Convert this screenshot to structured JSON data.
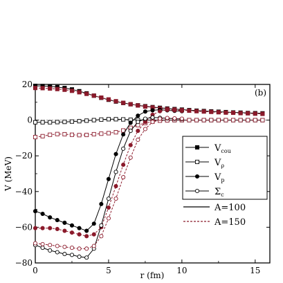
{
  "chart_data": {
    "type": "line",
    "title": "",
    "panel_label": "(b)",
    "xlabel": "r (fm)",
    "ylabel": "V (MeV)",
    "xlim": [
      0,
      16
    ],
    "ylim": [
      -80,
      20
    ],
    "xticks": [
      0,
      5,
      10,
      15
    ],
    "yticks": [
      20,
      0,
      -20,
      -40,
      -60,
      -80
    ],
    "xtick_labels": [
      "0",
      "5",
      "10",
      "15"
    ],
    "ytick_labels": [
      "20",
      "0",
      "−20",
      "−40",
      "−60",
      "−80"
    ],
    "grid": false,
    "legend_position": "right",
    "legend": {
      "markers": [
        {
          "key": "V_cou",
          "base": "V",
          "sub": "cou",
          "marker": "filled-square"
        },
        {
          "key": "V_rho",
          "base": "V",
          "sub": "ρ",
          "marker": "open-square"
        },
        {
          "key": "V_p",
          "base": "V",
          "sub": "p",
          "marker": "filled-circle"
        },
        {
          "key": "Sigma_c",
          "base": "Σ",
          "sub": "c",
          "marker": "open-circle"
        }
      ],
      "lines": [
        {
          "key": "A100",
          "label": "A=100",
          "style": "solid"
        },
        {
          "key": "A150",
          "label": "A=150",
          "style": "dashed"
        }
      ]
    },
    "colors": {
      "A100": "#000000",
      "A150": "#8b1a2b"
    },
    "series": [
      {
        "component": "V_cou",
        "nucleus": "A=100",
        "marker": "filled-square",
        "style": "solid",
        "x": [
          0,
          0.5,
          1,
          1.5,
          2,
          2.5,
          3,
          3.5,
          4,
          4.5,
          5,
          5.5,
          6,
          6.5,
          7,
          7.5,
          8,
          8.5,
          9,
          9.5,
          10,
          10.5,
          11,
          11.5,
          12,
          12.5,
          13,
          13.5,
          14,
          14.5,
          15,
          15.5
        ],
        "y": [
          19.2,
          19.1,
          18.9,
          18.5,
          18,
          17.2,
          16.2,
          15,
          13.7,
          12.5,
          11.4,
          10.4,
          9.6,
          8.9,
          8.3,
          7.8,
          7.3,
          6.9,
          6.5,
          6.2,
          5.9,
          5.6,
          5.3,
          5.1,
          4.9,
          4.7,
          4.5,
          4.3,
          4.2,
          4.0,
          3.9,
          3.8
        ]
      },
      {
        "component": "V_cou",
        "nucleus": "A=150",
        "marker": "filled-square",
        "style": "dashed",
        "x": [
          0,
          0.5,
          1,
          1.5,
          2,
          2.5,
          3,
          3.5,
          4,
          4.5,
          5,
          5.5,
          6,
          6.5,
          7,
          7.5,
          8,
          8.5,
          9,
          9.5,
          10,
          10.5,
          11,
          11.5,
          12,
          12.5,
          13,
          13.5,
          14,
          14.5,
          15,
          15.5
        ],
        "y": [
          18.0,
          17.9,
          17.7,
          17.4,
          17,
          16.4,
          15.6,
          14.7,
          13.7,
          12.6,
          11.6,
          10.6,
          9.7,
          8.9,
          8.2,
          7.6,
          7.1,
          6.6,
          6.2,
          5.9,
          5.6,
          5.3,
          5.0,
          4.8,
          4.6,
          4.4,
          4.2,
          4.1,
          3.9,
          3.8,
          3.6,
          3.5
        ]
      },
      {
        "component": "V_rho",
        "nucleus": "A=100",
        "marker": "open-square",
        "style": "solid",
        "x": [
          0,
          0.5,
          1,
          1.5,
          2,
          2.5,
          3,
          3.5,
          4,
          4.5,
          5,
          5.5,
          6,
          6.5,
          7,
          7.5,
          8,
          8.5,
          9,
          9.5,
          10,
          10.5,
          11,
          11.5,
          12,
          12.5,
          13,
          13.5,
          14,
          14.5,
          15,
          15.5
        ],
        "y": [
          -1.2,
          -1.2,
          -1.2,
          -1.1,
          -1.0,
          -0.8,
          -0.6,
          -0.3,
          0.0,
          0.3,
          0.5,
          0.5,
          0.4,
          0.2,
          0.1,
          0,
          0,
          0,
          0,
          0,
          0,
          0,
          0,
          0,
          0,
          0,
          0,
          0,
          0,
          0,
          0,
          0
        ]
      },
      {
        "component": "V_rho",
        "nucleus": "A=150",
        "marker": "open-square",
        "style": "dashed",
        "x": [
          0,
          0.5,
          1,
          1.5,
          2,
          2.5,
          3,
          3.5,
          4,
          4.5,
          5,
          5.5,
          6,
          6.5,
          7,
          7.5,
          8,
          8.5,
          9,
          9.5,
          10,
          10.5,
          11,
          11.5,
          12,
          12.5,
          13,
          13.5,
          14,
          14.5,
          15,
          15.5
        ],
        "y": [
          -9.5,
          -9.0,
          -8.2,
          -7.8,
          -7.9,
          -8.2,
          -8.4,
          -8.3,
          -7.9,
          -7.6,
          -7.3,
          -6.8,
          -5.8,
          -4.3,
          -2.8,
          -1.6,
          -0.8,
          -0.3,
          -0.1,
          0,
          0,
          0,
          0,
          0,
          0,
          0,
          0,
          0,
          0,
          0,
          0,
          0
        ]
      },
      {
        "component": "V_p",
        "nucleus": "A=100",
        "marker": "filled-circle",
        "style": "solid",
        "x": [
          0,
          0.5,
          1,
          1.5,
          2,
          2.5,
          3,
          3.5,
          4,
          4.5,
          5,
          5.5,
          6,
          6.5,
          7,
          7.5,
          8,
          8.5,
          9,
          9.5,
          10
        ],
        "y": [
          -51,
          -52.5,
          -54.5,
          -56,
          -57.5,
          -59,
          -60.5,
          -62,
          -58,
          -47,
          -33,
          -19,
          -8,
          -1.5,
          2.5,
          4.8,
          5.5,
          5.8,
          5.5,
          5.2,
          5.0
        ]
      },
      {
        "component": "V_p",
        "nucleus": "A=150",
        "marker": "filled-circle",
        "style": "dashed",
        "x": [
          0,
          0.5,
          1,
          1.5,
          2,
          2.5,
          3,
          3.5,
          4,
          4.5,
          5,
          5.5,
          6,
          6.5,
          7,
          7.5,
          8,
          8.5,
          9,
          9.5,
          10
        ],
        "y": [
          -60.5,
          -60.5,
          -60.5,
          -61,
          -62,
          -63,
          -64,
          -65,
          -64,
          -60,
          -49,
          -37,
          -25,
          -14,
          -6,
          -1,
          3,
          5,
          5.7,
          5.5,
          5.2
        ]
      },
      {
        "component": "Sigma_c",
        "nucleus": "A=100",
        "marker": "open-circle",
        "style": "solid",
        "x": [
          0,
          0.5,
          1,
          1.5,
          2,
          2.5,
          3,
          3.5,
          4,
          4.5,
          5,
          5.5,
          6,
          6.5,
          7,
          7.5,
          8,
          8.5,
          9,
          9.5,
          10
        ],
        "y": [
          -70,
          -71.5,
          -73,
          -74,
          -75,
          -75.5,
          -76.5,
          -77,
          -72,
          -59,
          -44,
          -29,
          -16,
          -6,
          -1,
          0.8,
          1.5,
          1.3,
          1.0,
          0.8,
          0.6
        ]
      },
      {
        "component": "Sigma_c",
        "nucleus": "A=150",
        "marker": "open-circle",
        "style": "dashed",
        "x": [
          0,
          0.5,
          1,
          1.5,
          2,
          2.5,
          3,
          3.5,
          4,
          4.5,
          5,
          5.5,
          6,
          6.5,
          7,
          7.5,
          8,
          8.5,
          9,
          9.5,
          10
        ],
        "y": [
          -69,
          -69.5,
          -70,
          -70.5,
          -71,
          -71.5,
          -72,
          -72,
          -70.5,
          -65,
          -55,
          -44,
          -32,
          -21,
          -11,
          -5,
          -1,
          0.8,
          1.2,
          1.0,
          0.8
        ]
      }
    ]
  }
}
